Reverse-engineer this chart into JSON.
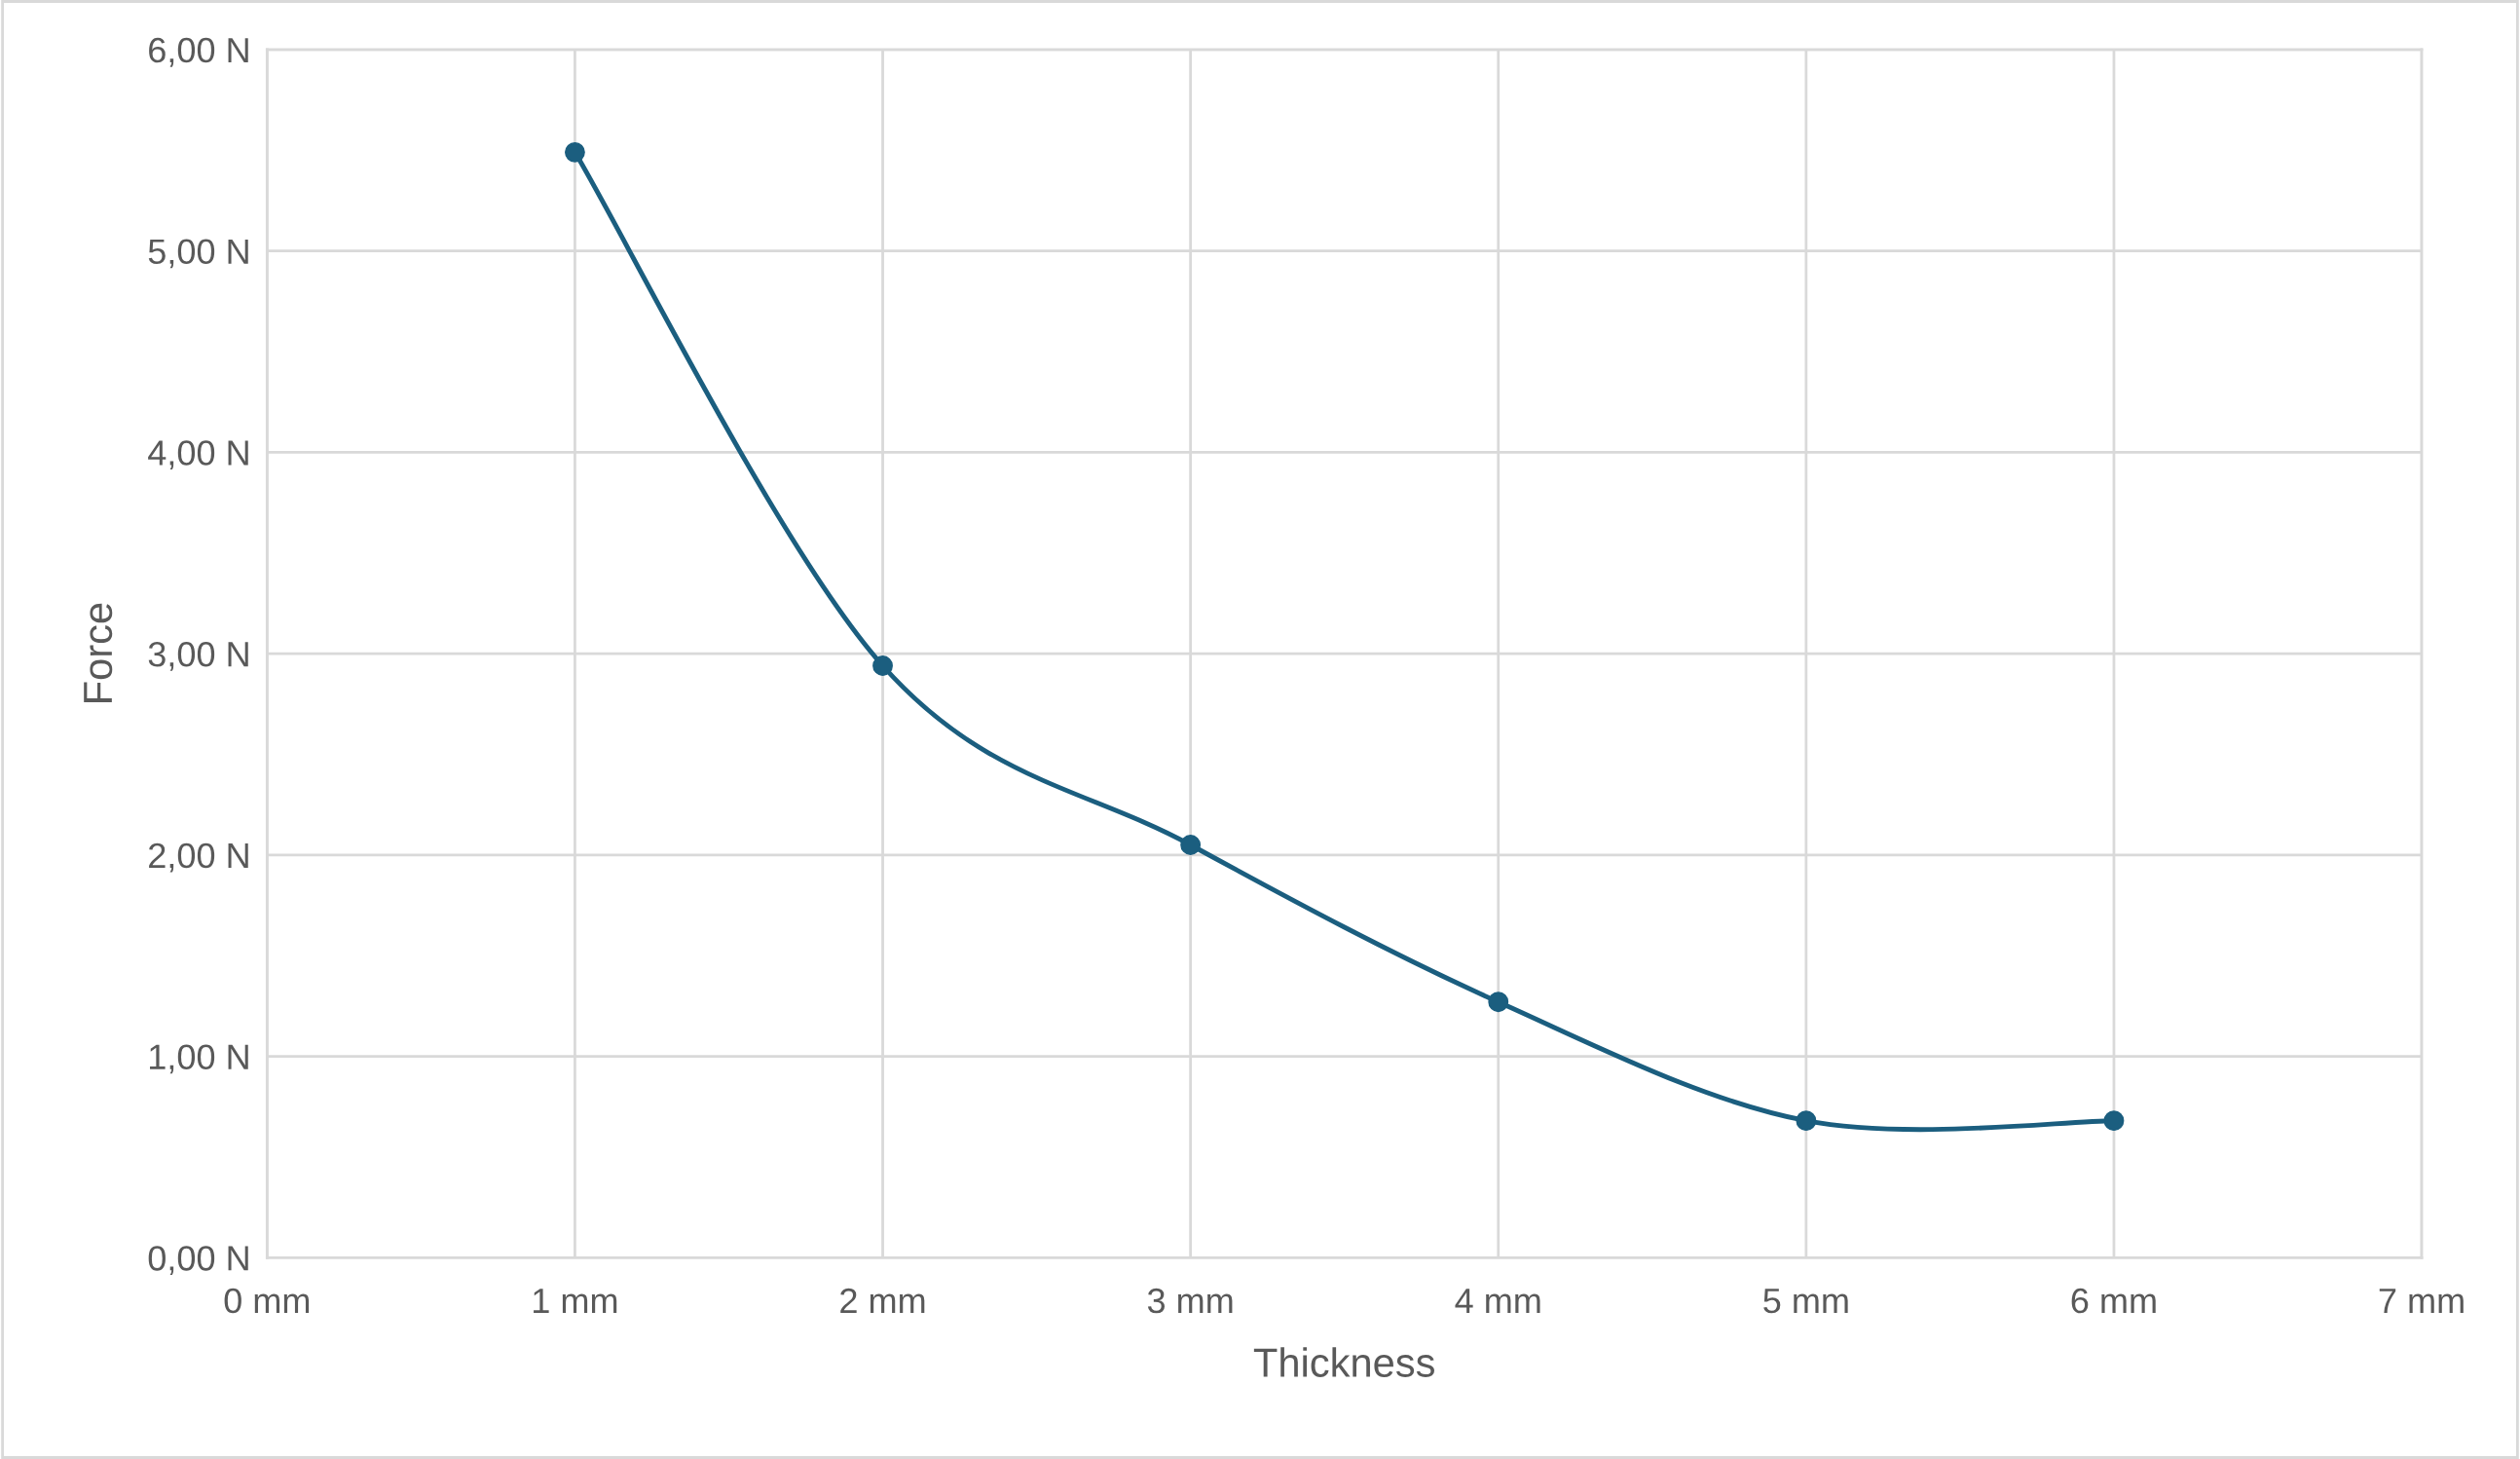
{
  "chart_data": {
    "type": "line",
    "xlabel": "Thickness",
    "ylabel": "Force",
    "x": [
      1,
      2,
      3,
      4,
      5,
      6
    ],
    "series": [
      {
        "color": "#1b5e7f",
        "values": [
          5.49,
          2.94,
          2.05,
          1.27,
          0.68,
          0.68
        ]
      }
    ],
    "xlim": [
      0,
      7
    ],
    "xticks": [
      {
        "value": 0,
        "label": "0 mm"
      },
      {
        "value": 1,
        "label": "1 mm"
      },
      {
        "value": 2,
        "label": "2 mm"
      },
      {
        "value": 3,
        "label": "3 mm"
      },
      {
        "value": 4,
        "label": "4 mm"
      },
      {
        "value": 5,
        "label": "5 mm"
      },
      {
        "value": 6,
        "label": "6 mm"
      },
      {
        "value": 7,
        "label": "7 mm"
      }
    ],
    "ylim": [
      0,
      6
    ],
    "yticks": [
      {
        "value": 0,
        "label": "0,00 N"
      },
      {
        "value": 1,
        "label": "1,00 N"
      },
      {
        "value": 2,
        "label": "2,00 N"
      },
      {
        "value": 3,
        "label": "3,00 N"
      },
      {
        "value": 4,
        "label": "4,00 N"
      },
      {
        "value": 5,
        "label": "5,00 N"
      },
      {
        "value": 6,
        "label": "6,00 N"
      }
    ],
    "grid": true,
    "marker": "circle",
    "line_style": "solid"
  }
}
